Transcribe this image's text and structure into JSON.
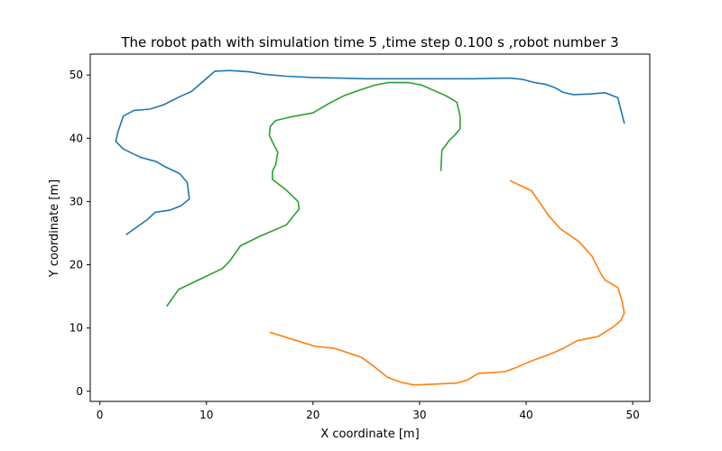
{
  "chart_data": {
    "type": "line",
    "title": "The robot path with simulation time 5 ,time step 0.100 s ,robot number 3",
    "xlabel": "X coordinate [m]",
    "ylabel": "Y coordinate [m]",
    "xlim": [
      -0.9,
      51.6
    ],
    "ylim": [
      -1.6,
      53.3
    ],
    "xticks": [
      0,
      10,
      20,
      30,
      40,
      50
    ],
    "yticks": [
      0,
      10,
      20,
      30,
      40,
      50
    ],
    "grid": false,
    "colors": [
      "#1f77b4",
      "#ff7f0e",
      "#2ca02c"
    ],
    "series": [
      {
        "color": "#1f77b4",
        "x": [
          2.5,
          4.5,
          5.2,
          6.5,
          7.6,
          8.4,
          8.2,
          7.5,
          6.0,
          5.3,
          3.8,
          2.2,
          1.5,
          1.7,
          2.2,
          3.2,
          4.7,
          6.0,
          7.4,
          8.6,
          9.9,
          10.8,
          12.2,
          14.0,
          15.5,
          17.5,
          20.0,
          25.0,
          30.0,
          35.0,
          38.5,
          39.7,
          40.8,
          41.9,
          42.7,
          43.4,
          44.4,
          46.0,
          47.4,
          48.6,
          49.2
        ],
        "y": [
          24.8,
          27.2,
          28.3,
          28.6,
          29.3,
          30.4,
          33.0,
          34.4,
          35.6,
          36.3,
          37.0,
          38.3,
          39.5,
          41.0,
          43.5,
          44.4,
          44.6,
          45.3,
          46.5,
          47.4,
          49.3,
          50.6,
          50.7,
          50.5,
          50.1,
          49.8,
          49.6,
          49.4,
          49.4,
          49.4,
          49.5,
          49.3,
          48.8,
          48.5,
          48.0,
          47.3,
          46.9,
          47.0,
          47.2,
          46.4,
          42.4
        ]
      },
      {
        "color": "#ff7f0e",
        "x": [
          16.0,
          18.5,
          20.2,
          22.0,
          24.5,
          25.5,
          27.0,
          28.3,
          29.5,
          31.0,
          33.5,
          34.5,
          35.5,
          38.0,
          39.0,
          40.5,
          42.3,
          43.5,
          44.8,
          46.8,
          48.2,
          48.9,
          49.2,
          49.0,
          48.6,
          47.4,
          47.0,
          46.2,
          45.0,
          43.2,
          42.1,
          41.2,
          40.5,
          38.5
        ],
        "y": [
          9.3,
          8.0,
          7.1,
          6.8,
          5.4,
          4.2,
          2.2,
          1.4,
          1.0,
          1.1,
          1.3,
          1.8,
          2.8,
          3.1,
          3.7,
          4.8,
          5.9,
          6.8,
          8.0,
          8.7,
          10.2,
          11.2,
          12.4,
          14.2,
          16.4,
          17.6,
          18.6,
          21.3,
          23.6,
          25.7,
          27.8,
          30.0,
          31.7,
          33.3
        ]
      },
      {
        "color": "#2ca02c",
        "x": [
          6.3,
          7.4,
          9.5,
          11.5,
          12.2,
          13.2,
          15.0,
          17.5,
          18.7,
          18.6,
          17.5,
          16.2,
          16.2,
          16.5,
          16.7,
          16.2,
          15.9,
          16.0,
          16.5,
          18.0,
          20.0,
          21.5,
          23.0,
          24.7,
          25.8,
          27.0,
          29.0,
          30.2,
          32.5,
          33.5,
          33.8,
          33.8,
          33.3,
          32.8,
          32.1,
          32.0
        ],
        "y": [
          13.5,
          16.1,
          17.8,
          19.4,
          20.6,
          23.0,
          24.5,
          26.3,
          28.8,
          30.0,
          31.8,
          33.5,
          34.8,
          35.8,
          37.8,
          39.4,
          40.5,
          41.9,
          42.8,
          43.4,
          44.0,
          45.5,
          46.8,
          47.8,
          48.4,
          48.8,
          48.8,
          48.4,
          46.7,
          45.7,
          43.5,
          41.5,
          40.5,
          39.7,
          38.1,
          34.9
        ]
      }
    ]
  }
}
